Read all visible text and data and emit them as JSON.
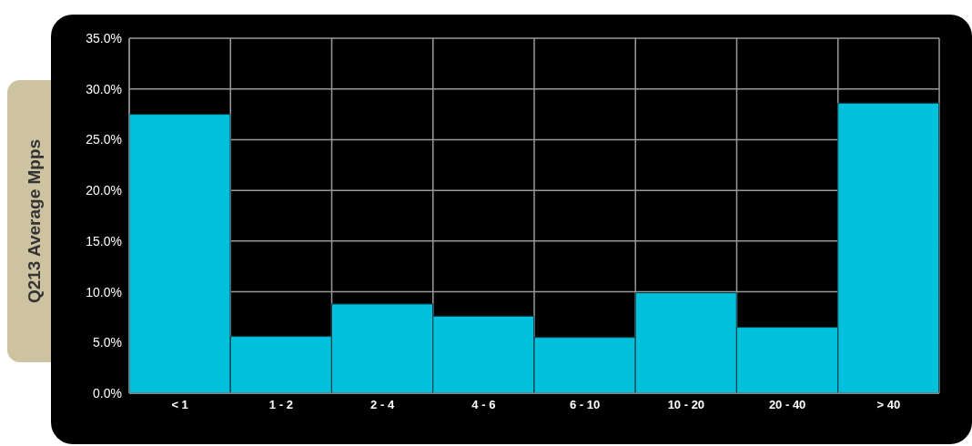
{
  "chart_data": {
    "type": "bar",
    "ylabel": "Q213 Average Mpps",
    "categories": [
      "< 1",
      "1 - 2",
      "2 - 4",
      "4 - 6",
      "6 - 10",
      "10 - 20",
      "20 - 40",
      "> 40"
    ],
    "values": [
      27.5,
      5.6,
      8.8,
      7.6,
      5.5,
      9.9,
      6.5,
      28.6
    ],
    "color": "#00c0dc",
    "ylim": [
      0,
      35
    ],
    "yticks": [
      {
        "value": 0,
        "label": "0.0%"
      },
      {
        "value": 5,
        "label": "5.0%"
      },
      {
        "value": 10,
        "label": "10.0%"
      },
      {
        "value": 15,
        "label": "15.0%"
      },
      {
        "value": 20,
        "label": "20.0%"
      },
      {
        "value": 25,
        "label": "25.0%"
      },
      {
        "value": 30,
        "label": "30.0%"
      },
      {
        "value": 35,
        "label": "35.0%"
      }
    ],
    "grid": true,
    "legend": false
  }
}
